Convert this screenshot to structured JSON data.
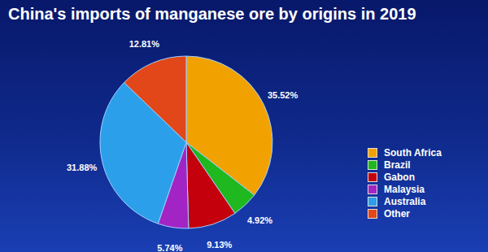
{
  "chart_data": {
    "type": "pie",
    "title": "China's imports of manganese ore by origins in 2019",
    "categories": [
      "South Africa",
      "Brazil",
      "Gabon",
      "Malaysia",
      "Australia",
      "Other"
    ],
    "values": [
      35.52,
      4.92,
      9.13,
      5.74,
      31.88,
      12.81
    ],
    "value_labels": [
      "35.52%",
      "4.92%",
      "9.13%",
      "5.74%",
      "31.88%",
      "12.81%"
    ],
    "colors": [
      "#f2a200",
      "#1fb81f",
      "#c4000c",
      "#a224c4",
      "#2c9fea",
      "#e2471a"
    ],
    "data_labels": true,
    "legend": "right"
  }
}
